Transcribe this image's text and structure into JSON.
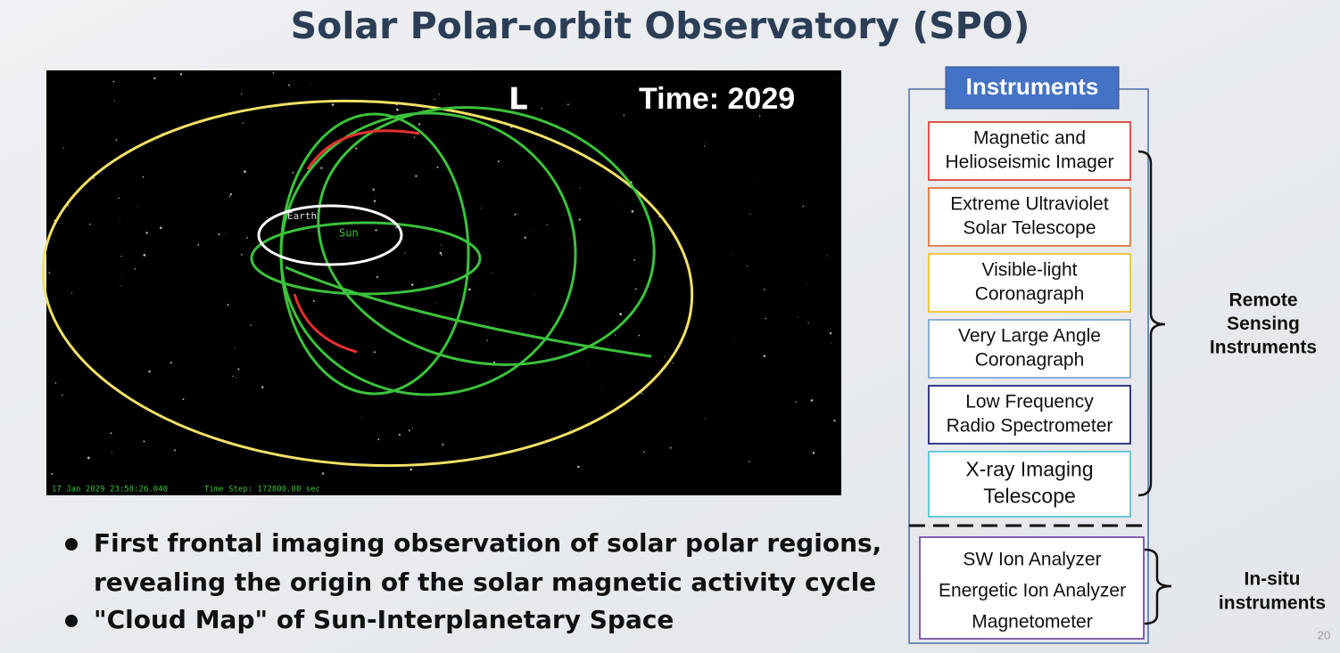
{
  "header": {
    "title": "Solar Polar-orbit Observatory (SPO)"
  },
  "animation": {
    "overlay_left": "L",
    "overlay_time": "Time: 2029",
    "sun_label": "Sun",
    "earth_label": "Earth",
    "footer_date": "17 Jan 2029 23:58:26.040",
    "footer_step": "Time Step: 172800.00 sec"
  },
  "bullets": [
    [
      "First frontal imaging observation of solar polar regions,",
      "revealing the origin of the solar magnetic activity cycle"
    ],
    [
      "\"Cloud Map\" of Sun-Interplanetary Space"
    ]
  ],
  "instruments": {
    "title": "Instruments",
    "remote": [
      {
        "lines": [
          "Magnetic and",
          "Helioseismic Imager"
        ],
        "color": "#d9443a"
      },
      {
        "lines": [
          "Extreme Ultraviolet",
          "Solar Telescope"
        ],
        "color": "#e0763a"
      },
      {
        "lines": [
          "Visible-light",
          "Coronagraph"
        ],
        "color": "#f0c232"
      },
      {
        "lines": [
          "Very Large Angle",
          "Coronagraph"
        ],
        "color": "#7fa8d0"
      },
      {
        "lines": [
          "Low Frequency",
          "Radio Spectrometer"
        ],
        "color": "#1f2a78"
      },
      {
        "lines": [
          "X-ray Imaging",
          "Telescope"
        ],
        "color": "#5bc4d4"
      }
    ],
    "remote_label": [
      "Remote",
      "Sensing",
      "Instruments"
    ],
    "insitu": {
      "items": [
        "SW Ion Analyzer",
        "Energetic Ion Analyzer",
        "Magnetometer"
      ],
      "color": "#7a4fa8"
    },
    "insitu_label": [
      "In-situ",
      "instruments"
    ]
  },
  "page_number": "20"
}
